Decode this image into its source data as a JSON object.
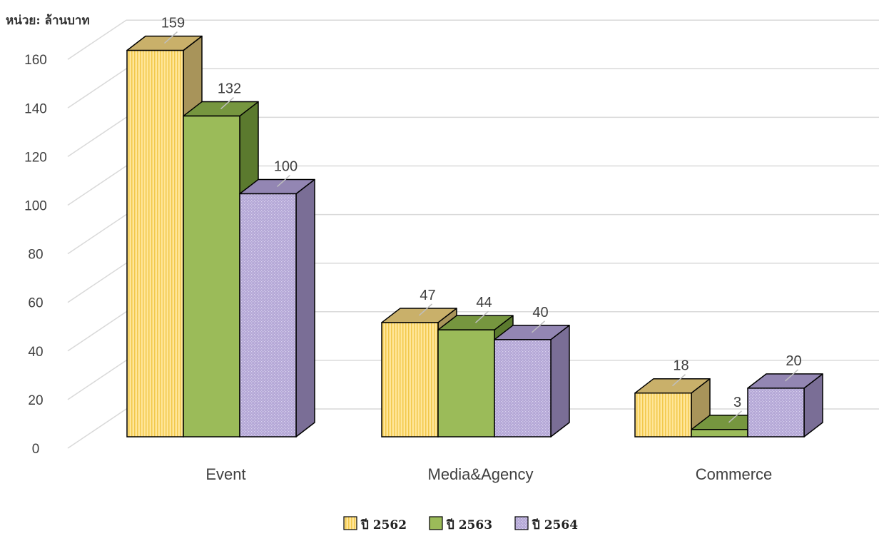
{
  "unit_label": "หน่วย: ล้านบาท",
  "chart_data": {
    "type": "bar",
    "title": "",
    "xlabel": "",
    "ylabel": "หน่วย: ล้านบาท",
    "ylim": [
      0,
      160
    ],
    "yticks": [
      0,
      20,
      40,
      60,
      80,
      100,
      120,
      140,
      160
    ],
    "grid": true,
    "legend_position": "bottom",
    "three_d": true,
    "categories": [
      "Event",
      "Media&Agency",
      "Commerce"
    ],
    "series": [
      {
        "name": "ปี 2562",
        "values": [
          159,
          47,
          18
        ],
        "color": "#ffe699",
        "side_color": "#a8945a"
      },
      {
        "name": "ปี 2563",
        "values": [
          132,
          44,
          3
        ],
        "color": "#9bbb59",
        "side_color": "#5b7a2e"
      },
      {
        "name": "ปี 2564",
        "values": [
          100,
          40,
          20
        ],
        "color": "#b4a7d6",
        "side_color": "#7a6e96"
      }
    ]
  }
}
